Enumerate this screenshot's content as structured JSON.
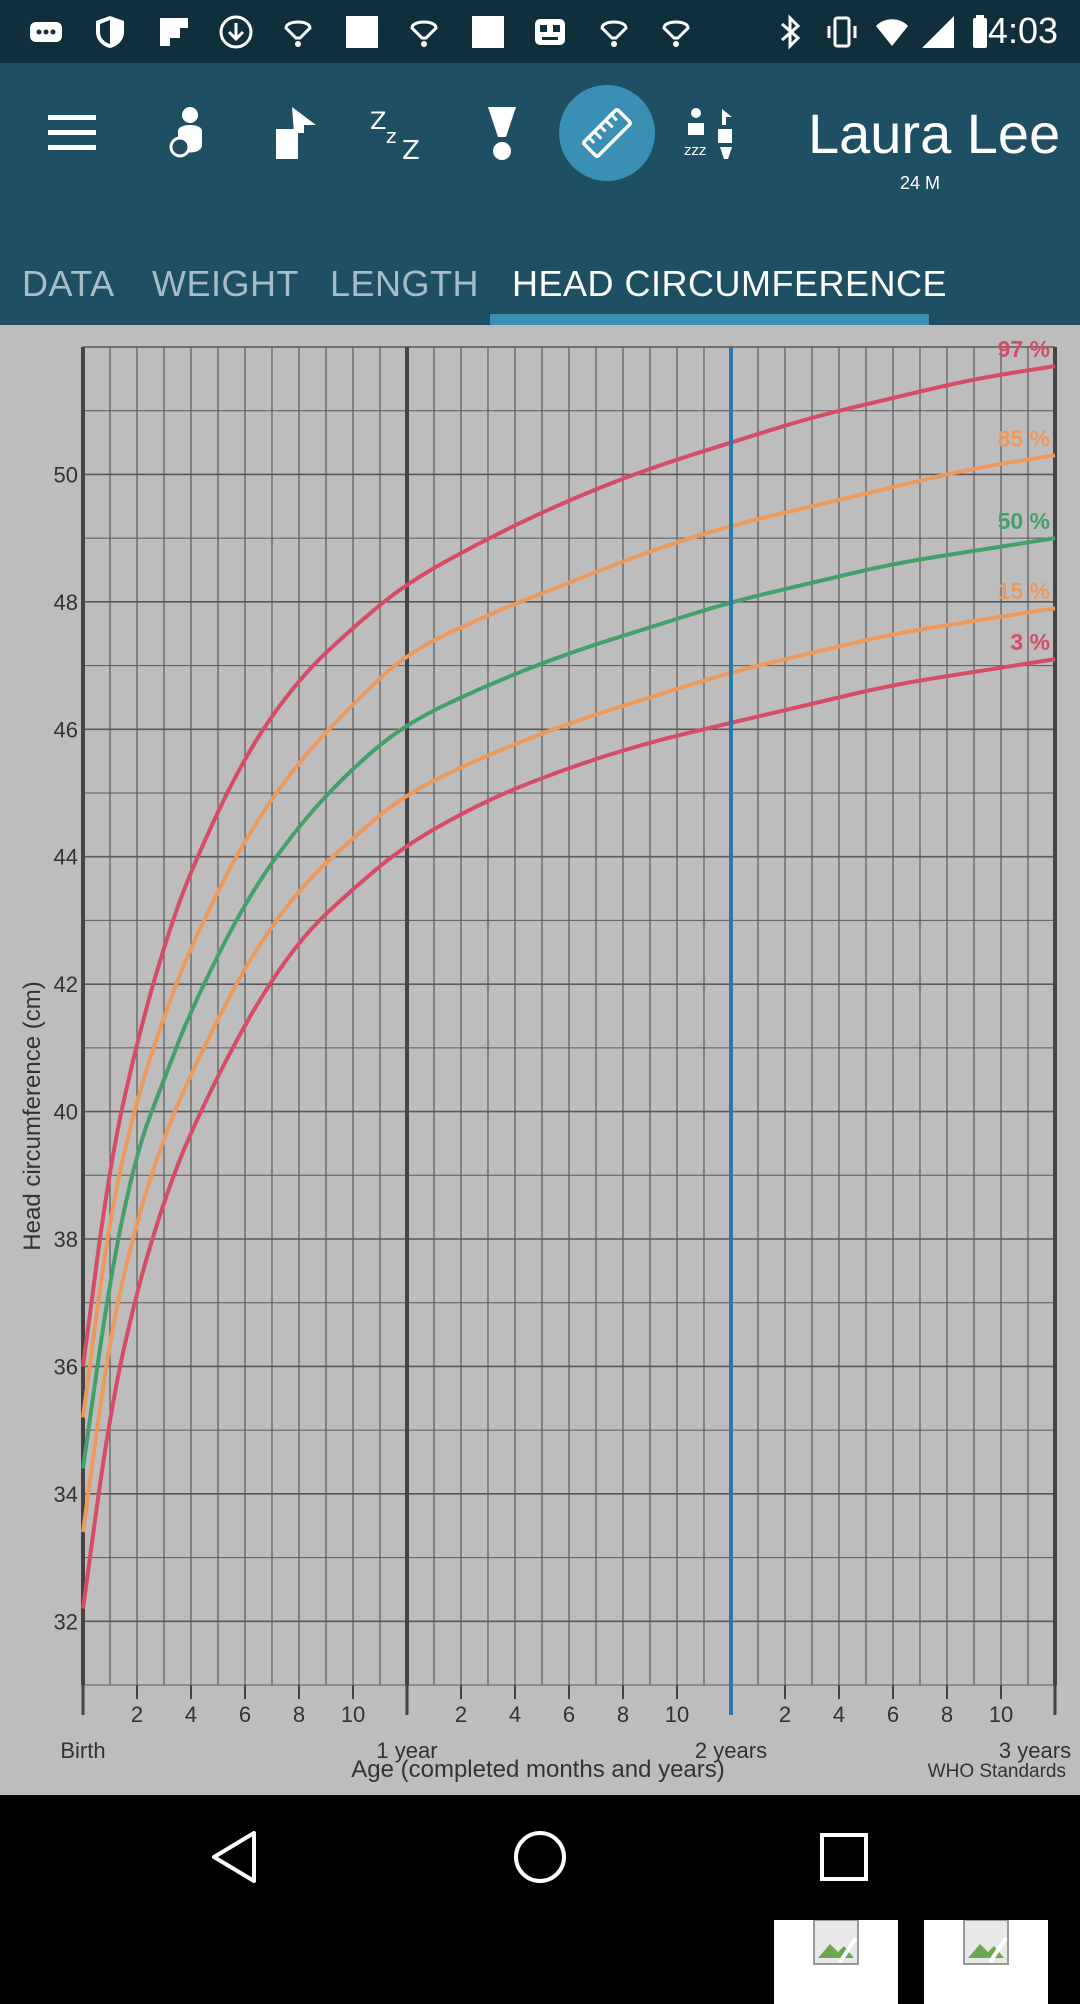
{
  "status_bar": {
    "time": "4:03",
    "icons": [
      "more-icon",
      "shield-icon",
      "flipboard-icon",
      "download-icon",
      "lamp-icon",
      "blank-icon",
      "lamp-icon",
      "blank-icon",
      "robot-icon",
      "lamp-icon",
      "lamp-icon",
      "bluetooth-icon",
      "vibrate-icon",
      "wifi-icon",
      "signal-icon",
      "battery-icon"
    ]
  },
  "toolbar": {
    "icons": [
      "menu-icon",
      "feeding-icon",
      "diaper-icon",
      "sleep-icon",
      "bottle-icon",
      "ruler-icon",
      "activities-icon"
    ],
    "active_icon": "ruler-icon"
  },
  "profile": {
    "name": "Laura Lee",
    "age": "24 M"
  },
  "tabs": [
    {
      "label": "DATA"
    },
    {
      "label": "WEIGHT"
    },
    {
      "label": "LENGTH"
    },
    {
      "label": "HEAD CIRCUMFERENCE"
    }
  ],
  "active_tab": "HEAD CIRCUMFERENCE",
  "chart_data": {
    "type": "line",
    "ylabel": "Head circumference (cm)",
    "xlabel": "Age (completed months and years)",
    "source_note": "WHO Standards",
    "ylim": [
      31,
      52
    ],
    "xlim": [
      0,
      36
    ],
    "y_ticks": [
      "32",
      "34",
      "36",
      "38",
      "40",
      "42",
      "44",
      "46",
      "48",
      "50"
    ],
    "x_ticks": [
      {
        "m": 2,
        "label": "2"
      },
      {
        "m": 4,
        "label": "4"
      },
      {
        "m": 6,
        "label": "6"
      },
      {
        "m": 8,
        "label": "8"
      },
      {
        "m": 10,
        "label": "10"
      },
      {
        "m": 14,
        "label": "2"
      },
      {
        "m": 16,
        "label": "4"
      },
      {
        "m": 18,
        "label": "6"
      },
      {
        "m": 20,
        "label": "8"
      },
      {
        "m": 22,
        "label": "10"
      },
      {
        "m": 26,
        "label": "2"
      },
      {
        "m": 28,
        "label": "4"
      },
      {
        "m": 30,
        "label": "6"
      },
      {
        "m": 32,
        "label": "8"
      },
      {
        "m": 34,
        "label": "10"
      }
    ],
    "x_major": [
      {
        "m": 0,
        "label": "Birth"
      },
      {
        "m": 12,
        "label": "1 year"
      },
      {
        "m": 24,
        "label": "2 years"
      },
      {
        "m": 36,
        "label": "3 years"
      }
    ],
    "current_age_months": 24,
    "grid": true,
    "x": [
      0,
      1,
      2,
      3,
      4,
      6,
      8,
      10,
      12,
      15,
      18,
      21,
      24,
      27,
      30,
      33,
      36
    ],
    "series": [
      {
        "name": "97 %",
        "color": "#d64b66",
        "values": [
          36.0,
          39.2,
          41.1,
          42.6,
          43.8,
          45.6,
          46.8,
          47.6,
          48.3,
          49.0,
          49.6,
          50.1,
          50.5,
          50.9,
          51.2,
          51.5,
          51.7
        ]
      },
      {
        "name": "85 %",
        "color": "#ec9a5c",
        "values": [
          35.2,
          38.4,
          40.2,
          41.5,
          42.6,
          44.3,
          45.5,
          46.4,
          47.2,
          47.8,
          48.3,
          48.8,
          49.2,
          49.5,
          49.8,
          50.1,
          50.3
        ]
      },
      {
        "name": "50 %",
        "color": "#42a06a",
        "values": [
          34.4,
          37.4,
          39.4,
          40.5,
          41.6,
          43.3,
          44.5,
          45.4,
          46.1,
          46.7,
          47.2,
          47.6,
          48.0,
          48.3,
          48.6,
          48.8,
          49.0
        ]
      },
      {
        "name": "15 %",
        "color": "#ec9a5c",
        "values": [
          33.4,
          36.5,
          38.3,
          39.6,
          40.6,
          42.3,
          43.5,
          44.3,
          45.0,
          45.6,
          46.1,
          46.5,
          46.9,
          47.2,
          47.5,
          47.7,
          47.9
        ]
      },
      {
        "name": "3 %",
        "color": "#d64b66",
        "values": [
          32.2,
          35.3,
          37.2,
          38.6,
          39.7,
          41.4,
          42.7,
          43.5,
          44.2,
          44.9,
          45.4,
          45.8,
          46.1,
          46.4,
          46.7,
          46.9,
          47.1
        ]
      }
    ]
  },
  "nav_bar": {
    "icons": [
      "back-icon",
      "home-icon",
      "recents-icon"
    ]
  }
}
